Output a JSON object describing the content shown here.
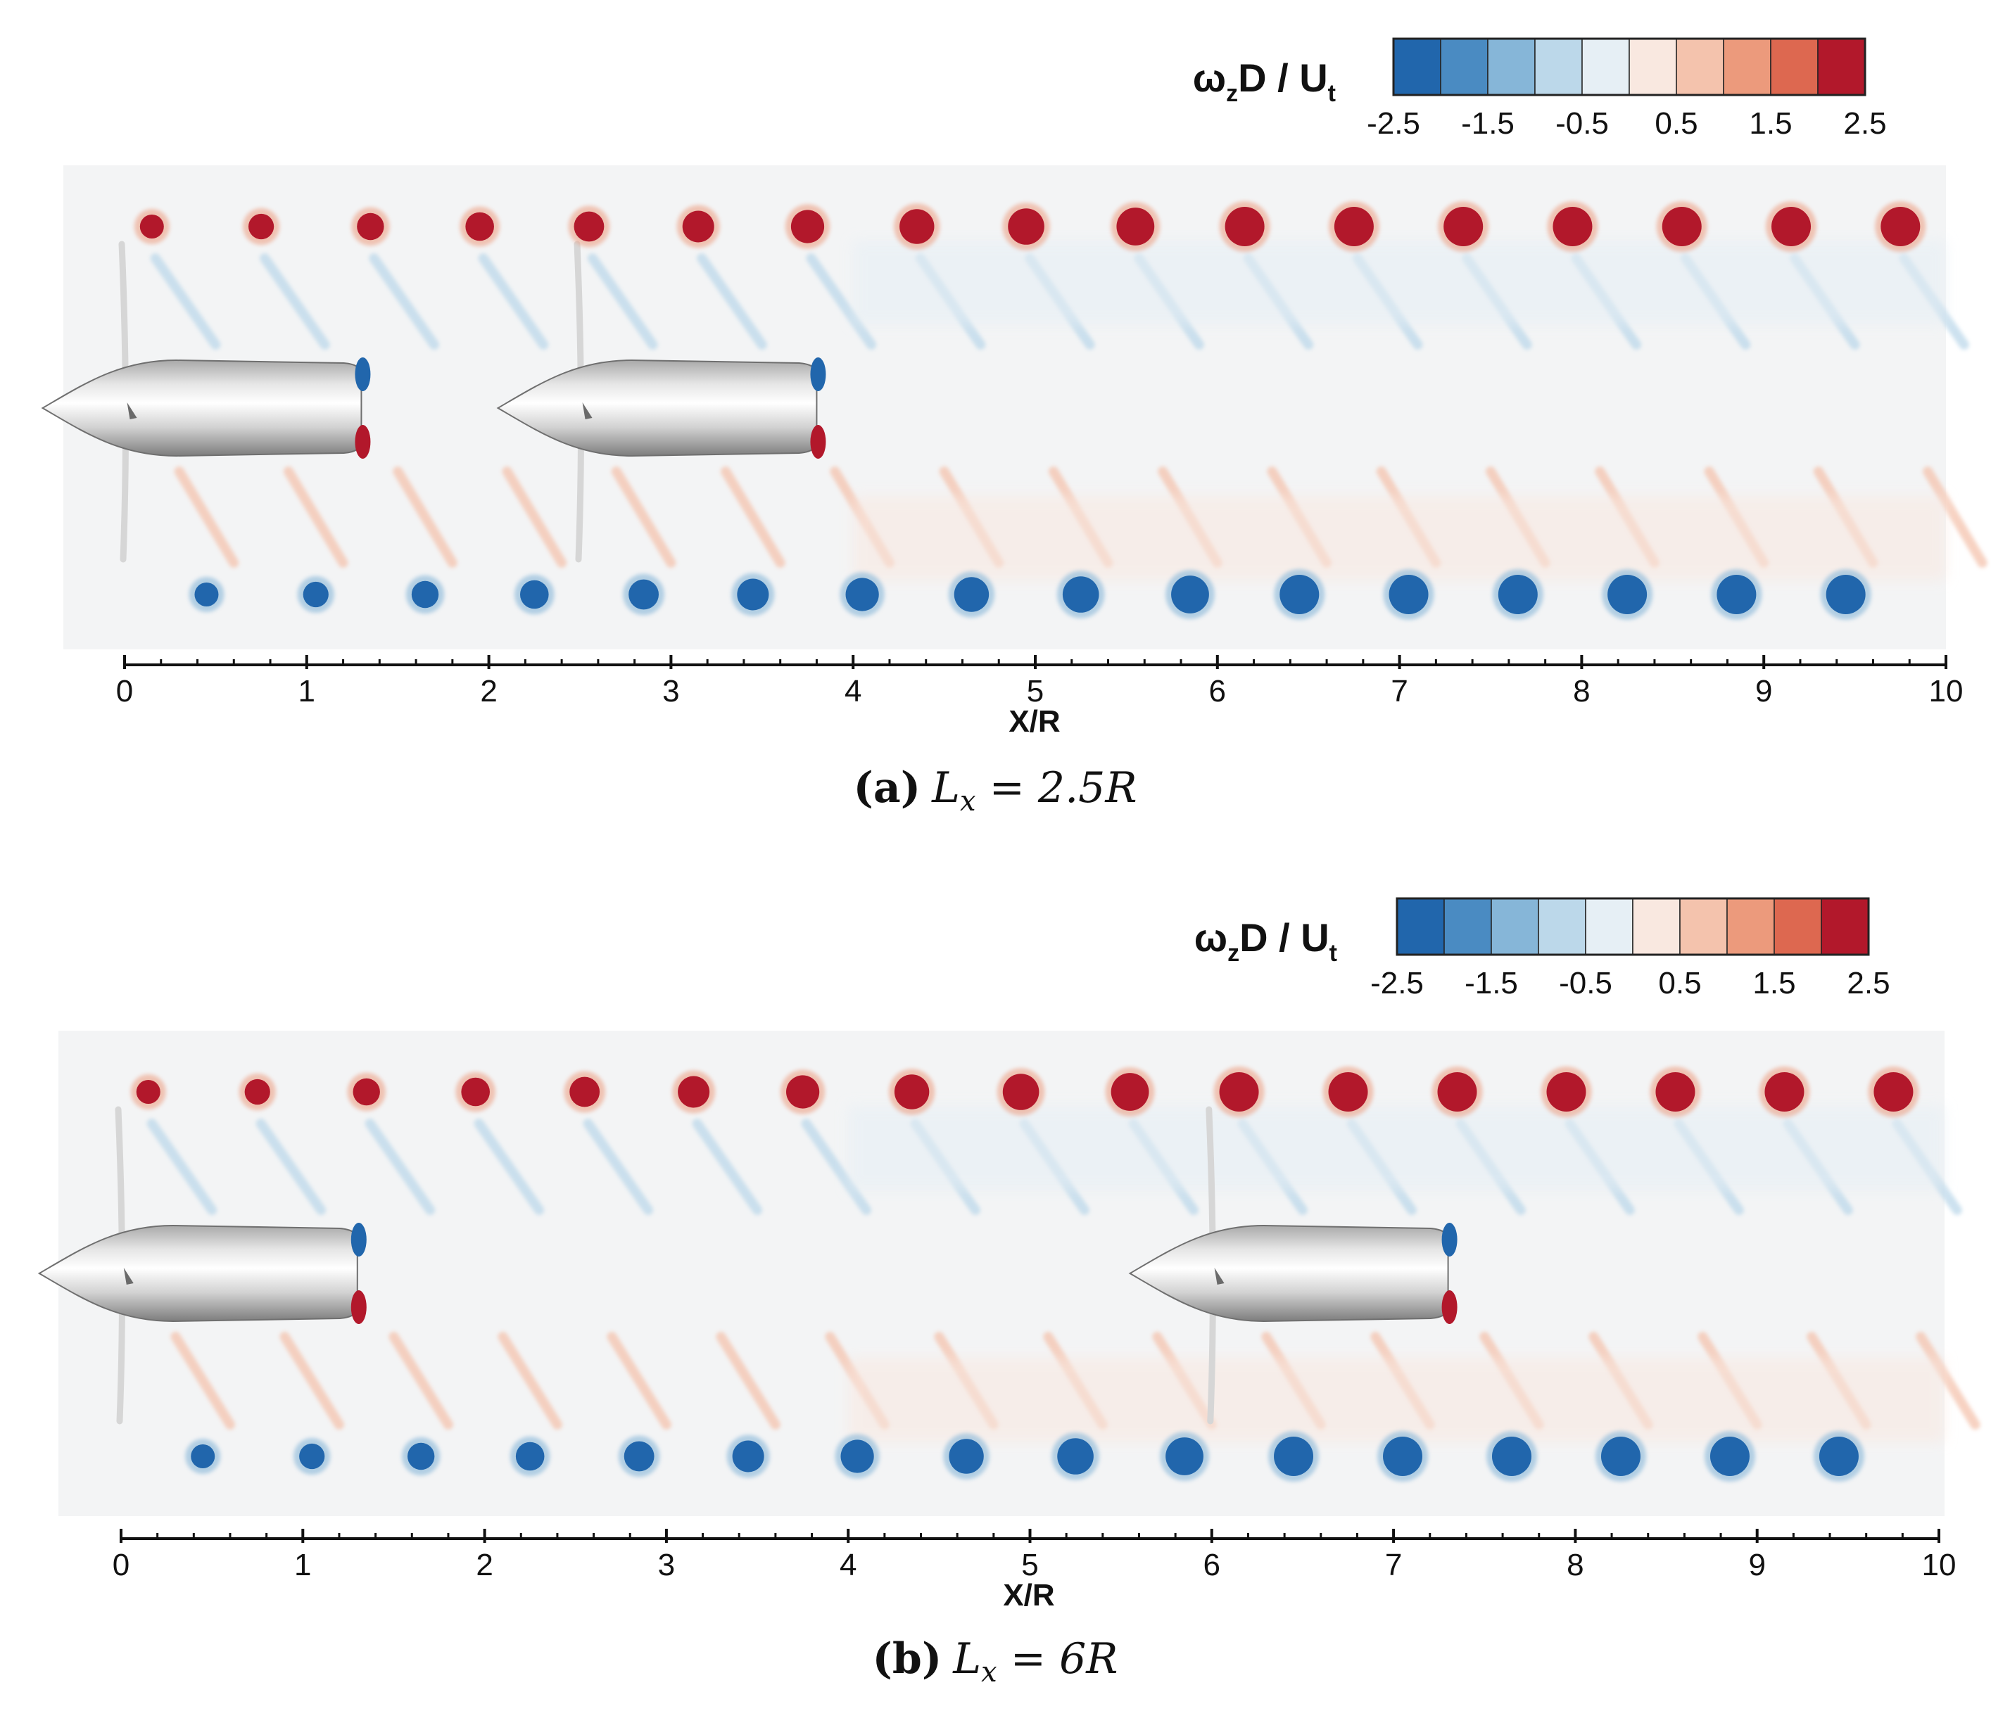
{
  "figure": {
    "panels": [
      {
        "id": "a",
        "caption_label": "(a)",
        "caption_lhs": "L",
        "caption_sub": "x",
        "caption_rhs": " = 2.5R",
        "colorbar": {
          "title_omega": "ω",
          "title_sub": "z",
          "title_mid": "D / U",
          "title_sub2": "t"
        },
        "nacelles_xr": [
          -0.45,
          2.05
        ],
        "propeller_xr": [
          0.0,
          2.5
        ]
      },
      {
        "id": "b",
        "caption_label": "(b)",
        "caption_lhs": "L",
        "caption_sub": "x",
        "caption_rhs": " = 6R",
        "colorbar": {
          "title_omega": "ω",
          "title_sub": "z",
          "title_mid": "D / U",
          "title_sub2": "t"
        },
        "nacelles_xr": [
          -0.45,
          5.55
        ],
        "propeller_xr": [
          0.0,
          6.0
        ]
      }
    ]
  },
  "chart_data": [
    {
      "type": "heatmap",
      "title": "ωzD / Ut",
      "xlabel": "X/R",
      "ylabel": "",
      "xlim": [
        0,
        10
      ],
      "xticks": [
        "0",
        "1",
        "2",
        "3",
        "4",
        "5",
        "6",
        "7",
        "8",
        "9",
        "10"
      ],
      "colorbar_range": [
        -2.5,
        2.5
      ],
      "colorbar_ticks": [
        "-2.5",
        "-1.5",
        "-0.5",
        "0.5",
        "1.5",
        "2.5"
      ],
      "colorbar_levels": 10,
      "colors": [
        "#2166ac",
        "#4a8bc2",
        "#86b6d8",
        "#bcd8ea",
        "#e6eff5",
        "#f9e8e0",
        "#f4c3ad",
        "#ec9a7c",
        "#dd6850",
        "#b2182b"
      ],
      "tip_vortex_top_xr": [
        0.15,
        0.75,
        1.35,
        1.95,
        2.55,
        3.15,
        3.75,
        4.35,
        4.95,
        5.55,
        6.15,
        6.75,
        7.35,
        7.95,
        8.55,
        9.15,
        9.75
      ],
      "tip_vortex_bottom_xr": [
        0.45,
        1.05,
        1.65,
        2.25,
        2.85,
        3.45,
        4.05,
        4.65,
        5.25,
        5.85,
        6.45,
        7.05,
        7.65,
        8.25,
        8.85,
        9.45
      ],
      "series": [
        {
          "name": "tip vortex (top, positive)",
          "value": 2.5
        },
        {
          "name": "tip vortex (bottom, negative)",
          "value": -2.5
        }
      ]
    },
    {
      "type": "heatmap",
      "title": "ωzD / Ut",
      "xlabel": "X/R",
      "ylabel": "",
      "xlim": [
        0,
        10
      ],
      "xticks": [
        "0",
        "1",
        "2",
        "3",
        "4",
        "5",
        "6",
        "7",
        "8",
        "9",
        "10"
      ],
      "colorbar_range": [
        -2.5,
        2.5
      ],
      "colorbar_ticks": [
        "-2.5",
        "-1.5",
        "-0.5",
        "0.5",
        "1.5",
        "2.5"
      ],
      "colorbar_levels": 10,
      "colors": [
        "#2166ac",
        "#4a8bc2",
        "#86b6d8",
        "#bcd8ea",
        "#e6eff5",
        "#f9e8e0",
        "#f4c3ad",
        "#ec9a7c",
        "#dd6850",
        "#b2182b"
      ],
      "tip_vortex_top_xr": [
        0.15,
        0.75,
        1.35,
        1.95,
        2.55,
        3.15,
        3.75,
        4.35,
        4.95,
        5.55,
        6.15,
        6.75,
        7.35,
        7.95,
        8.55,
        9.15,
        9.75
      ],
      "tip_vortex_bottom_xr": [
        0.45,
        1.05,
        1.65,
        2.25,
        2.85,
        3.45,
        4.05,
        4.65,
        5.25,
        5.85,
        6.45,
        7.05,
        7.65,
        8.25,
        8.85,
        9.45
      ],
      "series": [
        {
          "name": "tip vortex (top, positive)",
          "value": 2.5
        },
        {
          "name": "tip vortex (bottom, negative)",
          "value": -2.5
        }
      ]
    }
  ]
}
